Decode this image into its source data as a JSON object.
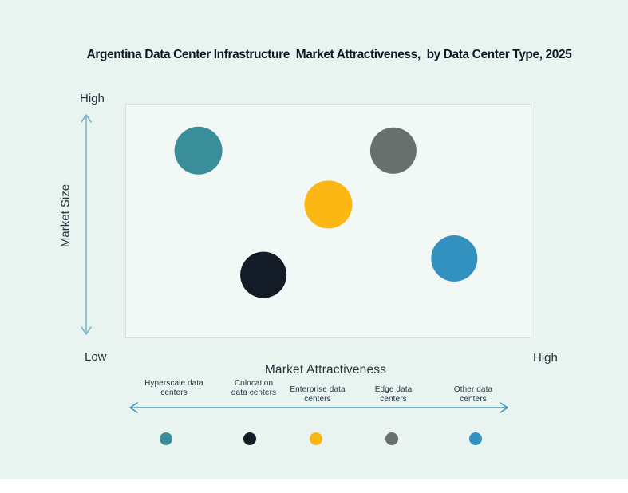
{
  "title": "Argentina Data Center Infrastructure  Market Attractiveness,  by Data Center Type, 2025",
  "axes": {
    "y_high": "High",
    "y_low": "Low",
    "y_title": "Market Size",
    "x_title": "Market Attractiveness",
    "x_high": "High"
  },
  "colors": {
    "background": "#e9f3f0",
    "plot_fill": "#f2f8f6",
    "plot_border": "#d6dedc",
    "y_axis_arrow": "#79b4c6",
    "x_axis_arrow": "#4d99b4",
    "title_text": "#0b1b26",
    "label_text": "#243740"
  },
  "chart_data": {
    "type": "bubble",
    "title": "Argentina Data Center Infrastructure Market Attractiveness, by Data Center Type, 2025",
    "xlabel": "Market Attractiveness",
    "ylabel": "Market Size",
    "x_scale": "qualitative Low to High (0-1)",
    "y_scale": "qualitative Low to High (0-1)",
    "grid": false,
    "legend_position": "bottom",
    "points": [
      {
        "name": "Hyperscale data centers",
        "attractiveness": 0.18,
        "market_size": 0.8,
        "radius_px": 30,
        "color": "#3a8e9a"
      },
      {
        "name": "Colocation data centers",
        "attractiveness": 0.34,
        "market_size": 0.27,
        "radius_px": 29,
        "color": "#131c26"
      },
      {
        "name": "Enterprise data centers",
        "attractiveness": 0.5,
        "market_size": 0.57,
        "radius_px": 30,
        "color": "#fbb713"
      },
      {
        "name": "Edge data centers",
        "attractiveness": 0.66,
        "market_size": 0.8,
        "radius_px": 29,
        "color": "#67706d"
      },
      {
        "name": "Other data centers",
        "attractiveness": 0.81,
        "market_size": 0.34,
        "radius_px": 29,
        "color": "#3391bf"
      }
    ]
  },
  "legend": {
    "items": [
      {
        "lines": [
          "Hyperscale data",
          "centers"
        ]
      },
      {
        "lines": [
          "Colocation",
          "data centers"
        ]
      },
      {
        "lines": [
          "Enterprise data",
          "centers"
        ]
      },
      {
        "lines": [
          "Edge data",
          "centers"
        ]
      },
      {
        "lines": [
          "Other data",
          "centers"
        ]
      }
    ]
  }
}
